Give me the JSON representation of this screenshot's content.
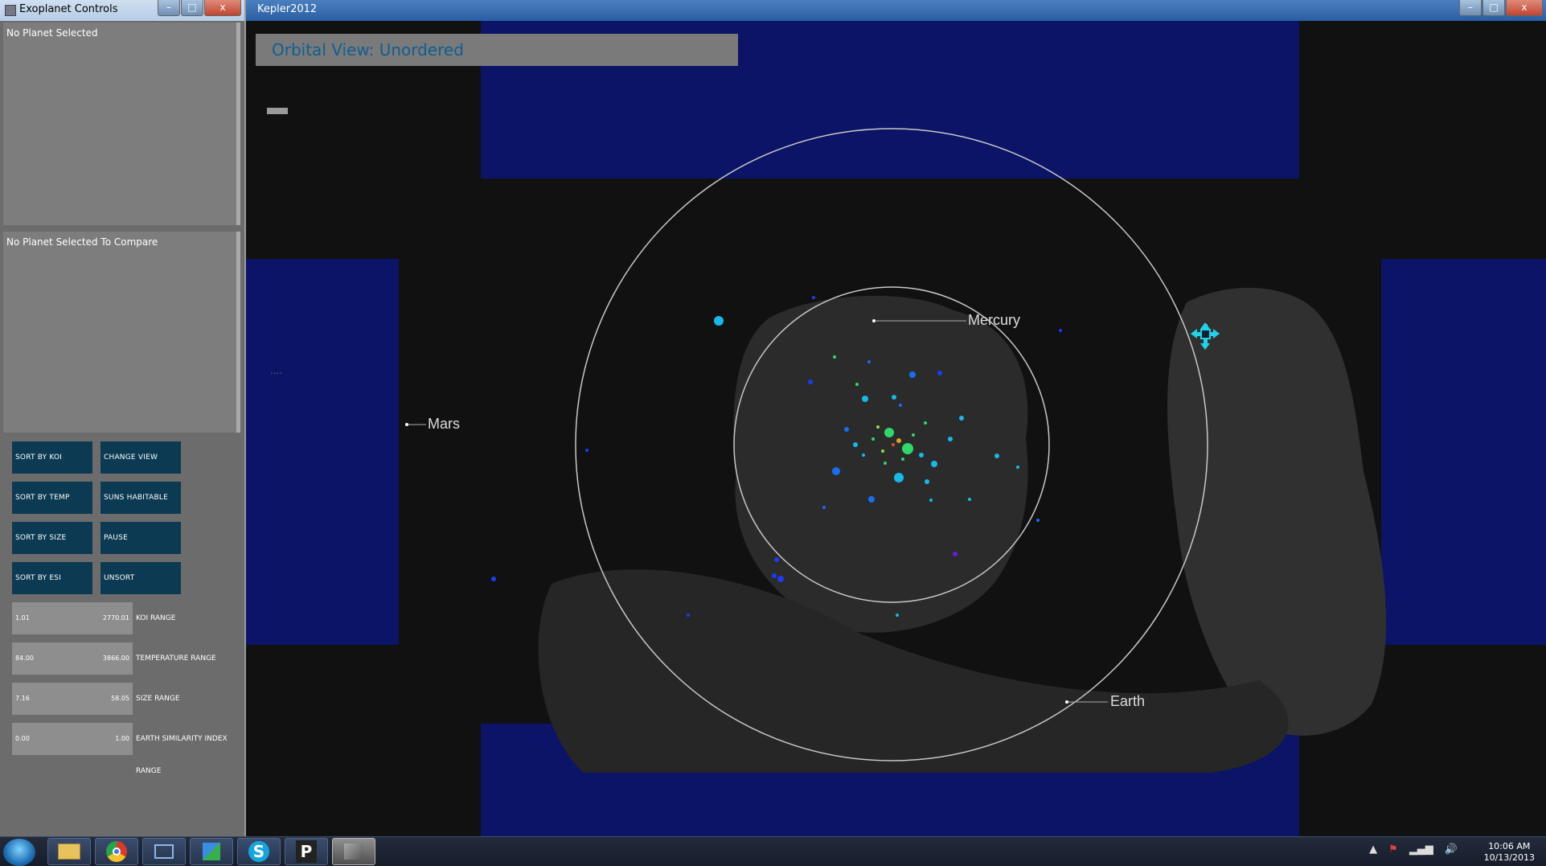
{
  "controls_window": {
    "title": "Exoplanet Controls",
    "minimize": "–",
    "maximize": "□",
    "close": "x",
    "selected_panel_text": "No Planet Selected",
    "compare_panel_text": "No Planet Selected To Compare",
    "buttons": {
      "sort_koi": "SORT BY KOI",
      "change_view": "CHANGE VIEW",
      "sort_temp": "SORT BY TEMP",
      "habitable_zone": "SUNS HABITABLE ZONE",
      "sort_size": "SORT BY SIZE",
      "pause": "PAUSE",
      "sort_esi": "SORT BY ESI",
      "unsort": "UNSORT"
    },
    "ranges": {
      "koi": {
        "low": "1.01",
        "high": "2770.01",
        "label": "KOI RANGE"
      },
      "temperature": {
        "low": "84.00",
        "high": "3866.00",
        "label": "TEMPERATURE RANGE"
      },
      "size": {
        "low": "7.16",
        "high": "58.05",
        "label": "SIZE RANGE"
      },
      "esi": {
        "low": "0.00",
        "high": "1.00",
        "label": "EARTH SIMILARITY INDEX RANGE"
      }
    }
  },
  "main_window": {
    "title": "Kepler2012",
    "minimize": "–",
    "maximize": "□",
    "close": "x",
    "view_title": "Orbital View: Unordered",
    "dots_text": "....",
    "planet_labels": {
      "mercury": "Mercury",
      "mars": "Mars",
      "earth": "Earth"
    }
  },
  "taskbar": {
    "time": "10:06 AM",
    "date": "10/13/2013",
    "apps": [
      "explorer-icon",
      "chrome-icon",
      "network-icon",
      "windows-update-icon",
      "skype-icon",
      "p-app-icon",
      "kepler-app-icon"
    ],
    "skype_glyph": "S",
    "p_glyph": "P"
  },
  "colors": {
    "view_title_text": "#0f5f91",
    "button_bg": "#0b3a52",
    "orbit": "#c8c8c8",
    "blue_rect": "#0b1466",
    "planet_cyan": "#17b9e6",
    "planet_blue": "#1a3df0",
    "planet_green": "#2fd86a"
  }
}
